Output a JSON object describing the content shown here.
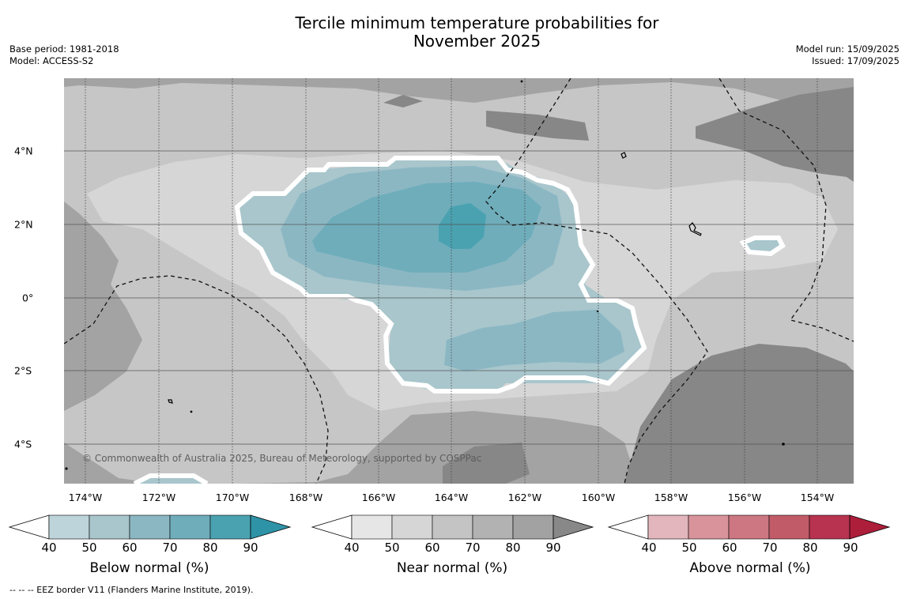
{
  "title": {
    "line1": "Tercile minimum temperature probabilities for",
    "line2": "November 2025"
  },
  "meta": {
    "base_period": "Base period: 1981-2018",
    "model": "Model: ACCESS-S2",
    "model_run": "Model run: 15/09/2025",
    "issued": "Issued: 17/09/2025"
  },
  "axes": {
    "lon_labels": [
      "174°W",
      "172°W",
      "170°W",
      "168°W",
      "166°W",
      "164°W",
      "162°W",
      "160°W",
      "158°W",
      "156°W",
      "154°W"
    ],
    "lat_labels": [
      "4°N",
      "2°N",
      "0°",
      "2°S",
      "4°S"
    ]
  },
  "copyright": "© Commonwealth of Australia 2025, Bureau of Meteorology, supported by COSPPac",
  "colorbars": [
    {
      "title": "Below normal (%)",
      "ticks": [
        "40",
        "50",
        "60",
        "70",
        "80",
        "90"
      ],
      "colors": [
        "#bcd4da",
        "#a8c6cc",
        "#8bb7c3",
        "#6fadbb",
        "#4aa2b1",
        "#2f93a7"
      ]
    },
    {
      "title": "Near normal (%)",
      "ticks": [
        "40",
        "50",
        "60",
        "70",
        "80",
        "90"
      ],
      "colors": [
        "#e6e6e6",
        "#d6d6d6",
        "#c4c4c4",
        "#b2b2b2",
        "#a2a2a2",
        "#888888"
      ]
    },
    {
      "title": "Above normal (%)",
      "ticks": [
        "40",
        "50",
        "60",
        "70",
        "80",
        "90"
      ],
      "colors": [
        "#e2b6bc",
        "#d8939b",
        "#cc7781",
        "#c25b68",
        "#b83350",
        "#ac1e3a"
      ]
    }
  ],
  "footnote": "--  --  -- EEZ border V11 (Flanders Marine Institute, 2019).",
  "colors": {
    "map_background": "#a3a3a3",
    "near_normal_light": "#d6d6d6",
    "near_normal_mid": "#c6c6c6",
    "near_normal_dark": "#878787",
    "below_normal_50": "#a8c6cc",
    "below_normal_60": "#8bb7c3",
    "below_normal_70": "#6fadbb",
    "below_normal_80": "#4aa2b1"
  }
}
